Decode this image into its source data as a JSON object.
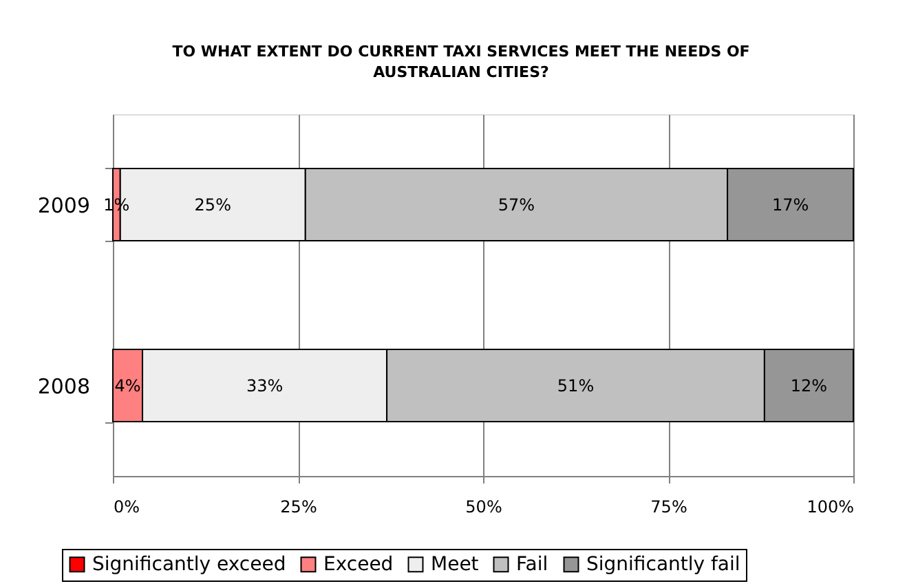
{
  "chart_data": {
    "type": "bar",
    "title": "TO WHAT EXTENT DO CURRENT TAXI SERVICES MEET THE NEEDS OF AUSTRALIAN CITIES?",
    "orientation": "horizontal",
    "stacked": true,
    "categories": [
      "2009",
      "2008"
    ],
    "series": [
      {
        "name": "Significantly exceed",
        "color": "#ff0000",
        "values": [
          0,
          0
        ],
        "value_labels": [
          null,
          null
        ]
      },
      {
        "name": "Exceed",
        "color": "#ff8080",
        "values": [
          1,
          4
        ],
        "value_labels": [
          "1%",
          "4%"
        ]
      },
      {
        "name": "Meet",
        "color": "#eeeeee",
        "values": [
          25,
          33
        ],
        "value_labels": [
          "25%",
          "33%"
        ]
      },
      {
        "name": "Fail",
        "color": "#c0c0c0",
        "values": [
          57,
          51
        ],
        "value_labels": [
          "57%",
          "51%"
        ]
      },
      {
        "name": "Significantly fail",
        "color": "#969696",
        "values": [
          17,
          12
        ],
        "value_labels": [
          "17%",
          "12%"
        ]
      }
    ],
    "xlim": [
      0,
      100
    ],
    "xticks": [
      {
        "value": 0,
        "label": "0%"
      },
      {
        "value": 25,
        "label": "25%"
      },
      {
        "value": 50,
        "label": "50%"
      },
      {
        "value": 75,
        "label": "75%"
      },
      {
        "value": 100,
        "label": "100%"
      }
    ],
    "grid": "x",
    "legend": "bottom"
  }
}
